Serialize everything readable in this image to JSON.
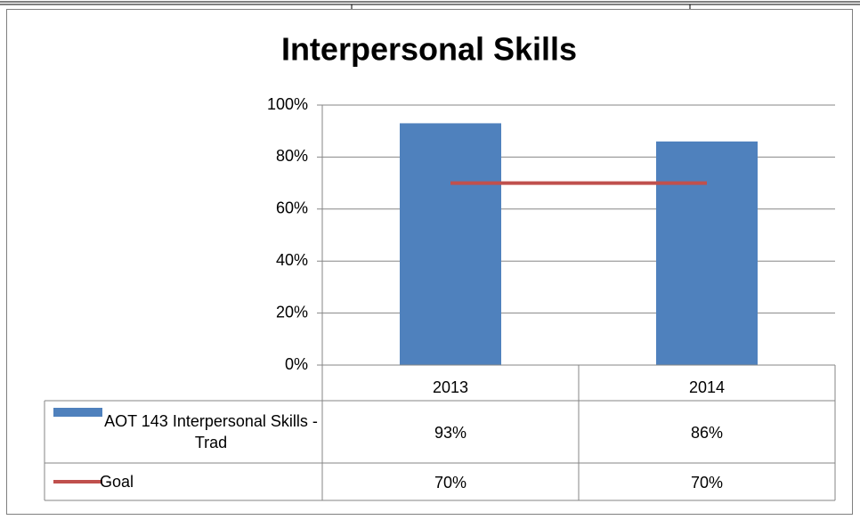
{
  "chart_data": {
    "type": "bar",
    "title": "Interpersonal Skills",
    "categories": [
      "2013",
      "2014"
    ],
    "series": [
      {
        "name": "AOT 143 Interpersonal Skills - Trad",
        "type": "bar",
        "color": "#4f81bd",
        "values": [
          93,
          86
        ],
        "value_labels": [
          "93%",
          "86%"
        ]
      },
      {
        "name": "Goal",
        "type": "line",
        "color": "#c0504d",
        "values": [
          70,
          70
        ],
        "value_labels": [
          "70%",
          "70%"
        ]
      }
    ],
    "ylim": [
      0,
      100
    ],
    "yticks": [
      {
        "value": 0,
        "label": "0%"
      },
      {
        "value": 20,
        "label": "20%"
      },
      {
        "value": 40,
        "label": "40%"
      },
      {
        "value": 60,
        "label": "60%"
      },
      {
        "value": 80,
        "label": "80%"
      },
      {
        "value": 100,
        "label": "100%"
      }
    ],
    "grid": true,
    "data_table": true
  }
}
